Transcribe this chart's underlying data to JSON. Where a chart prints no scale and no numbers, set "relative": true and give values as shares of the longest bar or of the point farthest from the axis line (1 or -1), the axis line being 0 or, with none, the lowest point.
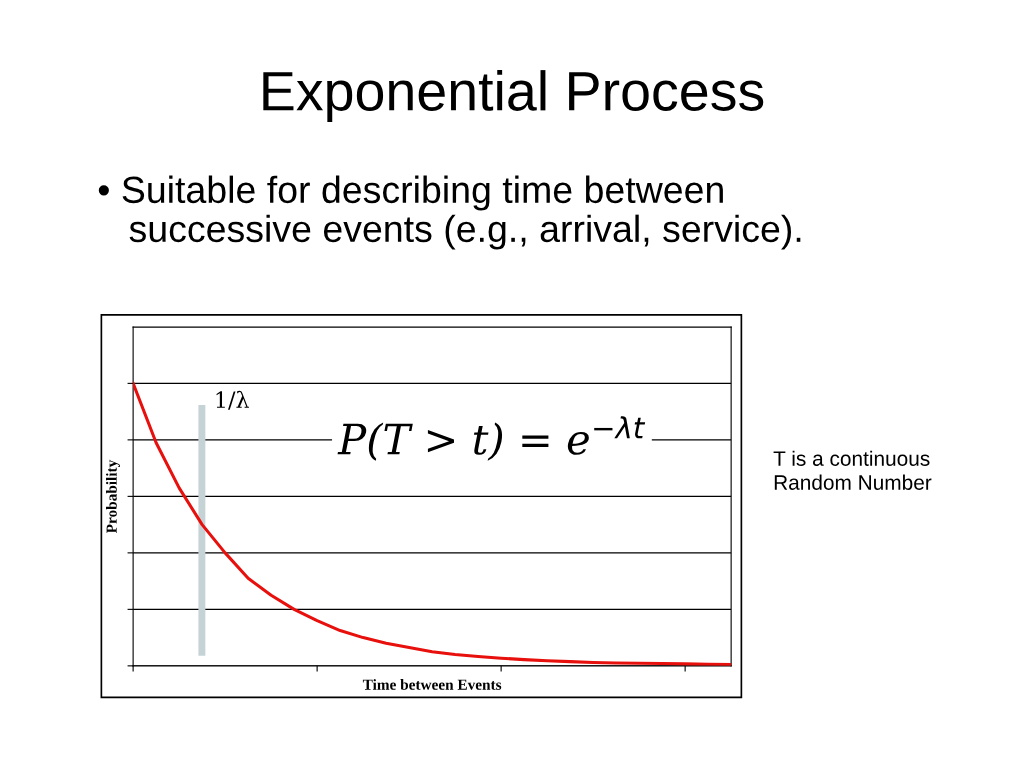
{
  "chart_data": {
    "type": "line",
    "title": "Exponential Process",
    "subtitle": "• Suitable for describing time between\n   successive events (e.g., arrival, service).",
    "xlabel": "Time between Events",
    "ylabel": "Probability",
    "relative": true,
    "grid": "y",
    "marker": "none",
    "line_style": "solid",
    "categories": [
      null,
      null,
      null,
      null,
      null,
      null,
      null,
      null,
      null,
      null,
      null,
      null,
      null,
      null,
      null,
      null,
      null,
      null,
      null,
      null,
      null,
      null,
      null,
      null,
      null,
      null,
      null
    ],
    "series": [
      {
        "color": "#e8100c",
        "values": [
          1.0,
          0.79,
          0.63,
          0.5,
          0.4,
          0.31,
          0.25,
          0.2,
          0.16,
          0.125,
          0.1,
          0.08,
          0.065,
          0.05,
          0.04,
          0.033,
          0.027,
          0.022,
          0.018,
          0.015,
          0.012,
          0.01,
          0.009,
          0.008,
          0.007,
          0.006,
          0.005
        ]
      }
    ],
    "annotations": [
      "1/λ",
      "P(T > t) = e$^{−λt}$",
      "T is a continuous\nRandom Number"
    ]
  }
}
